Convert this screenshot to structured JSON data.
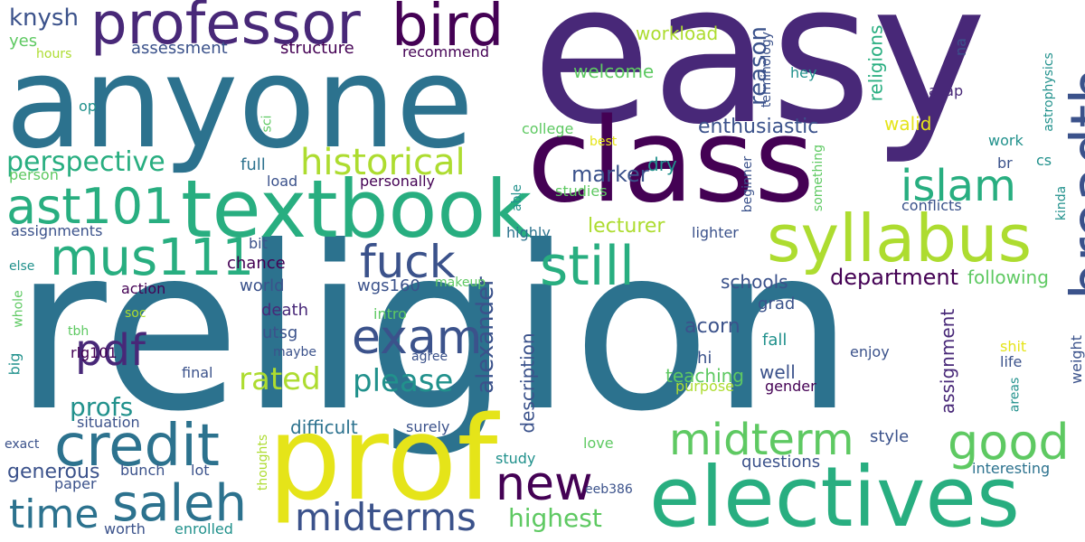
{
  "background": "#ffffff",
  "palette": {
    "indigo": "#482878",
    "darkpurple": "#440154",
    "slate": "#3b528b",
    "teal": "#2c728e",
    "cyan": "#21918c",
    "green": "#28ae80",
    "lime": "#5ec962",
    "yellowgreen": "#addc30",
    "yellow": "#e5e419"
  },
  "words": [
    "religion",
    "easy",
    "anyone",
    "class",
    "prof",
    "electives",
    "syllabus",
    "textbook",
    "professor",
    "bird",
    "breadth",
    "credit",
    "midterm",
    "good",
    "still",
    "islam",
    "saleh",
    "ast101",
    "mus111",
    "new",
    "exam",
    "midterms",
    "historical",
    "fuck",
    "pdf",
    "time",
    "alexander",
    "perspective",
    "rated",
    "please",
    "knysh",
    "profs",
    "department",
    "highest",
    "enthusiastic",
    "reason",
    "generous",
    "description",
    "assignment",
    "marker",
    "acorn",
    "workload",
    "welcome",
    "lecturer",
    "teaching",
    "religions",
    "schools",
    "following",
    "difficult",
    "chance",
    "world",
    "death",
    "utsg",
    "wgs160",
    "assignments",
    "structure",
    "assessment",
    "recommend",
    "yes",
    "hours",
    "op",
    "sci",
    "college",
    "best",
    "studies",
    "dry",
    "walid",
    "work",
    "cs",
    "br",
    "hey",
    "na",
    "asap",
    "astrophysics",
    "terminology",
    "beginner",
    "something",
    "able",
    "highly",
    "lighter",
    "conflicts",
    "kinda",
    "person",
    "load",
    "personally",
    "full",
    "bit",
    "else",
    "action",
    "whole",
    "makeup",
    "soc",
    "intro",
    "tbh",
    "maybe",
    "rlg101",
    "agree",
    "big",
    "final",
    "grad",
    "fall",
    "hi",
    "well",
    "enjoy",
    "life",
    "gender",
    "shit",
    "weight",
    "areas",
    "situation",
    "surely",
    "purpose",
    "exact",
    "love",
    "style",
    "thoughts",
    "bunch",
    "lot",
    "study",
    "questions",
    "interesting",
    "paper",
    "eeb386",
    "worth",
    "enrolled"
  ]
}
